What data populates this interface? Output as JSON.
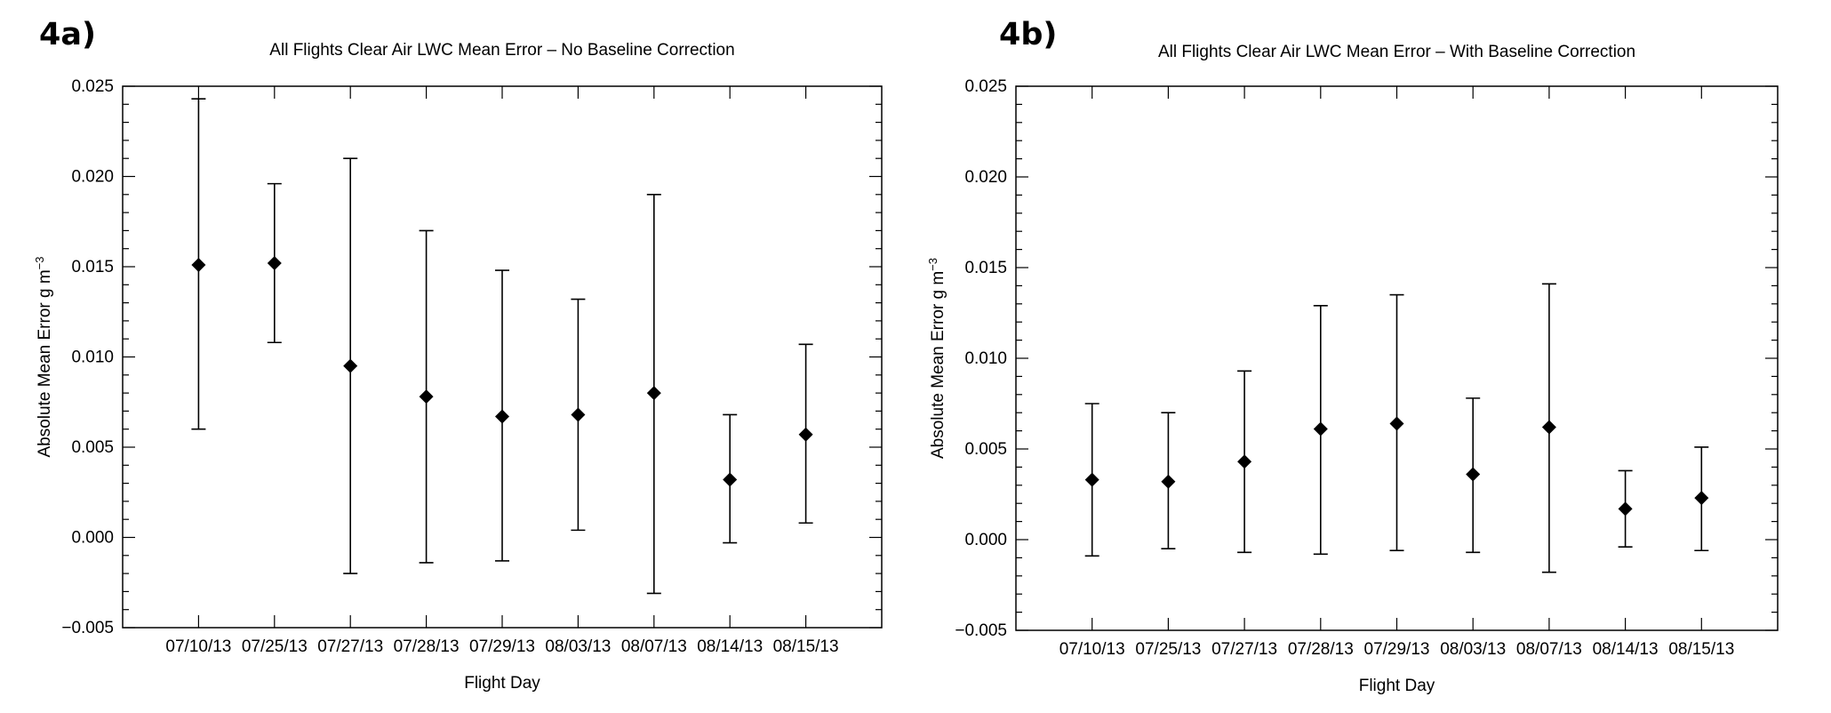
{
  "chart_data": [
    {
      "panel": "4a)",
      "type": "scatter",
      "title": "All Flights Clear Air LWC Mean Error – No Baseline Correction",
      "xlabel": "Flight Day",
      "ylabel": "Absolute Mean Error g m",
      "ylabel_sup": "−3",
      "categories": [
        "07/10/13",
        "07/25/13",
        "07/27/13",
        "07/28/13",
        "07/29/13",
        "08/03/13",
        "08/07/13",
        "08/14/13",
        "08/15/13"
      ],
      "series": [
        {
          "values": [
            0.0151,
            0.0152,
            0.0095,
            0.0078,
            0.0067,
            0.0068,
            0.008,
            0.0032,
            0.0057
          ],
          "error_low": [
            0.006,
            0.0108,
            -0.002,
            -0.0014,
            -0.0013,
            0.0004,
            -0.0031,
            -0.0003,
            0.0008
          ],
          "error_high": [
            0.0243,
            0.0196,
            0.021,
            0.017,
            0.0148,
            0.0132,
            0.019,
            0.0068,
            0.0107
          ]
        }
      ],
      "ylim": [
        -0.005,
        0.025
      ],
      "yticks": [
        "−0.005",
        "0.000",
        "0.005",
        "0.010",
        "0.015",
        "0.020",
        "0.025"
      ],
      "marker": "diamond",
      "grid": false,
      "legend": "none"
    },
    {
      "panel": "4b)",
      "type": "scatter",
      "title": "All Flights Clear Air LWC Mean Error – With Baseline Correction",
      "xlabel": "Flight Day",
      "ylabel": "Absolute Mean Error g m",
      "ylabel_sup": "−3",
      "categories": [
        "07/10/13",
        "07/25/13",
        "07/27/13",
        "07/28/13",
        "07/29/13",
        "08/03/13",
        "08/07/13",
        "08/14/13",
        "08/15/13"
      ],
      "series": [
        {
          "values": [
            0.0033,
            0.0032,
            0.0043,
            0.0061,
            0.0064,
            0.0036,
            0.0062,
            0.0017,
            0.0023
          ],
          "error_low": [
            -0.0009,
            -0.0005,
            -0.0007,
            -0.0008,
            -0.0006,
            -0.0007,
            -0.0018,
            -0.0004,
            -0.0006
          ],
          "error_high": [
            0.0075,
            0.007,
            0.0093,
            0.0129,
            0.0135,
            0.0078,
            0.0141,
            0.0038,
            0.0051
          ]
        }
      ],
      "ylim": [
        -0.005,
        0.025
      ],
      "yticks": [
        "−0.005",
        "0.000",
        "0.005",
        "0.010",
        "0.015",
        "0.020",
        "0.025"
      ],
      "marker": "diamond",
      "grid": false,
      "legend": "none"
    }
  ]
}
